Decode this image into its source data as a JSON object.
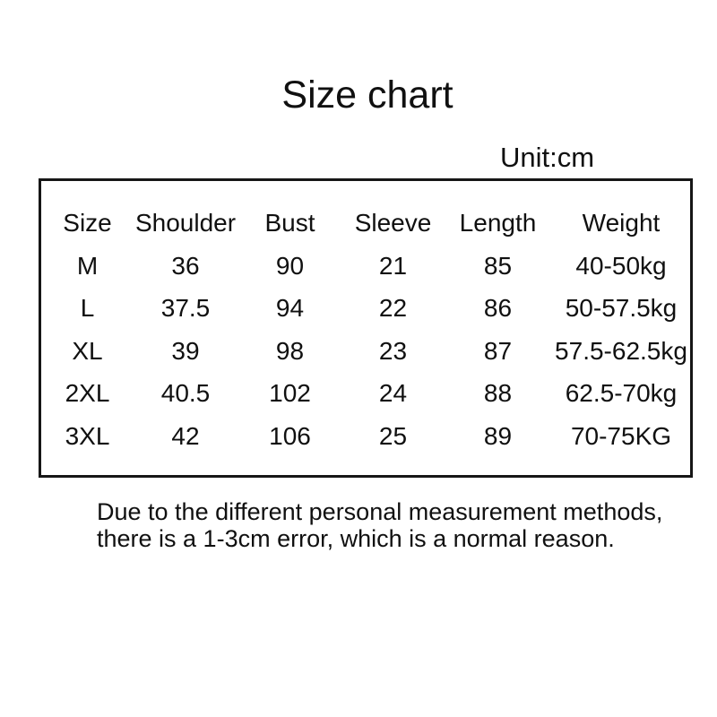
{
  "chart_data": {
    "type": "table",
    "title": "Size chart",
    "unit": "Unit:cm",
    "columns": [
      "Size",
      "Shoulder",
      "Bust",
      "Sleeve",
      "Length",
      "Weight"
    ],
    "rows": [
      [
        "M",
        "36",
        "90",
        "21",
        "85",
        "40-50kg"
      ],
      [
        "L",
        "37.5",
        "94",
        "22",
        "86",
        "50-57.5kg"
      ],
      [
        "XL",
        "39",
        "98",
        "23",
        "87",
        "57.5-62.5kg"
      ],
      [
        "2XL",
        "40.5",
        "102",
        "24",
        "88",
        "62.5-70kg"
      ],
      [
        "3XL",
        "42",
        "106",
        "25",
        "89",
        "70-75KG"
      ]
    ],
    "notes": [
      "Due to the different personal measurement methods,",
      "there is a 1-3cm error, which is a normal reason."
    ],
    "layout_hints": {
      "measurement_columns_unit": "cm",
      "border": "single black rectangle around table",
      "grid": "off"
    }
  },
  "colors": {
    "background": "#ffffff",
    "text": "#101010",
    "table_border": "#161616"
  }
}
